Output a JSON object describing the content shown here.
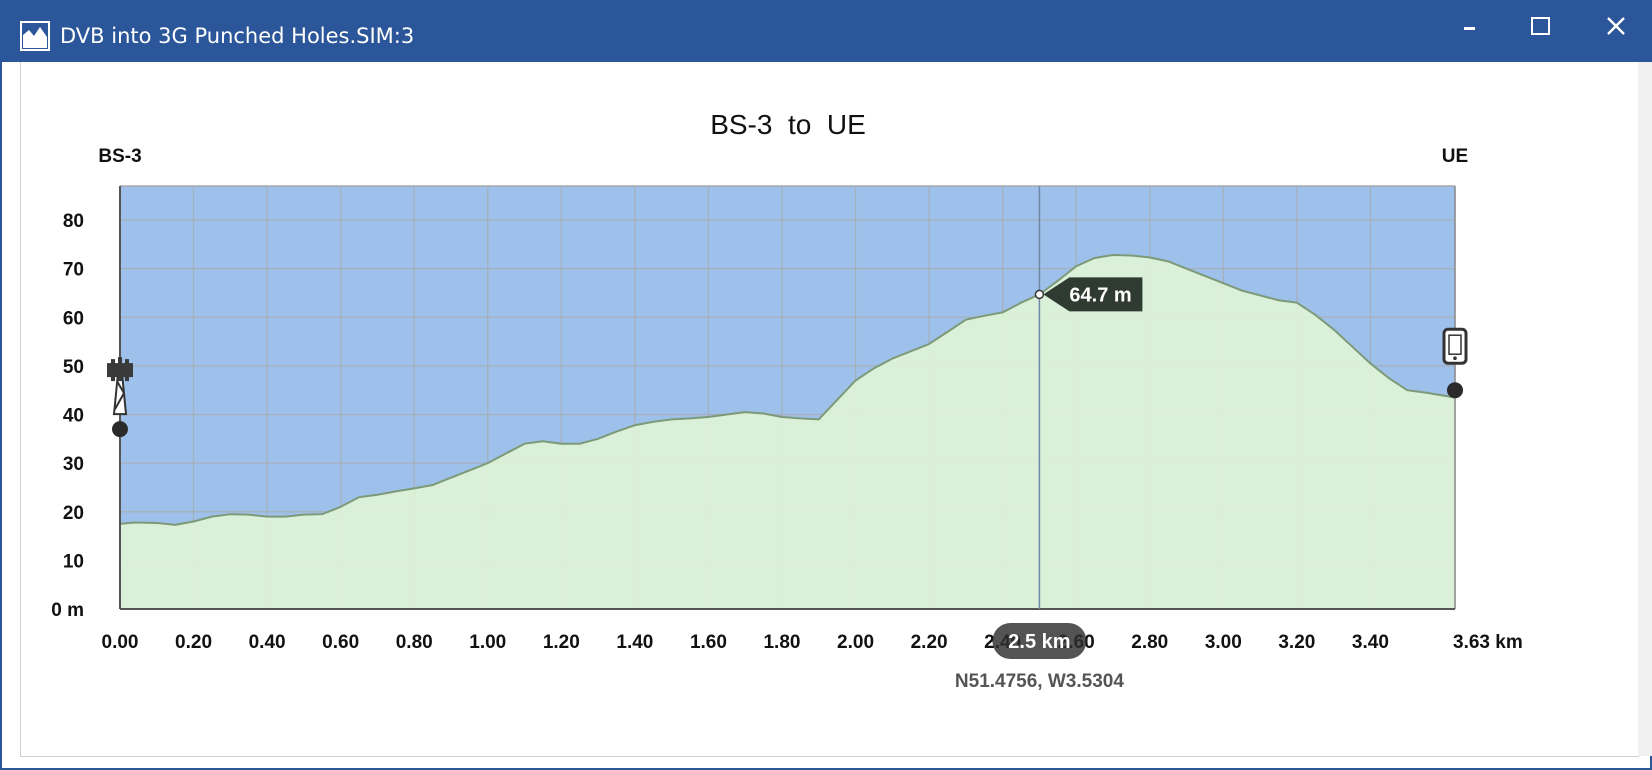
{
  "window": {
    "title": "DVB into 3G Punched Holes.SIM:3",
    "icon": "terrain-profile-icon",
    "controls": [
      "minimize-icon",
      "maximize-icon",
      "close-icon"
    ]
  },
  "chart_data": {
    "type": "area",
    "title": "BS-3  to  UE",
    "start_label": "BS-3",
    "end_label": "UE",
    "x_unit": "km",
    "y_unit": "m",
    "xlim": [
      0,
      3.63
    ],
    "ylim": [
      0,
      87
    ],
    "x_ticks": [
      "0.00",
      "0.20",
      "0.40",
      "0.60",
      "0.80",
      "1.00",
      "1.20",
      "1.40",
      "1.60",
      "1.80",
      "2.00",
      "2.20",
      "2.40",
      "2.60",
      "2.80",
      "3.00",
      "3.20",
      "3.40",
      "3.63 km"
    ],
    "x_tick_values": [
      0,
      0.2,
      0.4,
      0.6,
      0.8,
      1.0,
      1.2,
      1.4,
      1.6,
      1.8,
      2.0,
      2.2,
      2.4,
      2.6,
      2.8,
      3.0,
      3.2,
      3.4,
      3.63
    ],
    "y_ticks": [
      "0 m",
      "10",
      "20",
      "30",
      "40",
      "50",
      "60",
      "70",
      "80"
    ],
    "y_tick_values": [
      0,
      10,
      20,
      30,
      40,
      50,
      60,
      70,
      80
    ],
    "grid": true,
    "series": [
      {
        "color": "#dff3d6",
        "line_color": "#7d9a78",
        "x": [
          0,
          0.04,
          0.1,
          0.15,
          0.2,
          0.25,
          0.3,
          0.35,
          0.4,
          0.45,
          0.5,
          0.55,
          0.6,
          0.65,
          0.7,
          0.75,
          0.8,
          0.85,
          0.9,
          0.95,
          1.0,
          1.05,
          1.1,
          1.15,
          1.2,
          1.25,
          1.3,
          1.35,
          1.4,
          1.45,
          1.5,
          1.55,
          1.6,
          1.65,
          1.7,
          1.75,
          1.8,
          1.85,
          1.9,
          1.95,
          2.0,
          2.05,
          2.1,
          2.15,
          2.2,
          2.25,
          2.3,
          2.35,
          2.4,
          2.45,
          2.5,
          2.55,
          2.6,
          2.65,
          2.7,
          2.75,
          2.8,
          2.85,
          2.9,
          2.95,
          3.0,
          3.05,
          3.1,
          3.15,
          3.2,
          3.25,
          3.3,
          3.35,
          3.4,
          3.45,
          3.5,
          3.55,
          3.63
        ],
        "y": [
          17.5,
          17.8,
          17.7,
          17.3,
          18.0,
          19.0,
          19.5,
          19.4,
          19.0,
          19.0,
          19.4,
          19.5,
          21.0,
          23.0,
          23.5,
          24.2,
          24.8,
          25.5,
          27.0,
          28.5,
          30.0,
          32.0,
          34.0,
          34.5,
          34.0,
          34.0,
          35.0,
          36.5,
          37.8,
          38.5,
          39.0,
          39.2,
          39.5,
          40.0,
          40.5,
          40.2,
          39.5,
          39.2,
          39.0,
          43.0,
          47.0,
          49.5,
          51.5,
          53.0,
          54.5,
          57.0,
          59.5,
          60.3,
          61.0,
          63.0,
          64.7,
          67.5,
          70.5,
          72.2,
          72.8,
          72.7,
          72.3,
          71.5,
          70.0,
          68.5,
          67.0,
          65.5,
          64.5,
          63.5,
          63.0,
          60.5,
          57.5,
          54.0,
          50.5,
          47.5,
          45.0,
          44.5,
          43.5
        ]
      }
    ],
    "start_marker": {
      "icon": "cell-tower-icon",
      "x": 0,
      "height": 37
    },
    "end_marker": {
      "icon": "mobile-phone-icon",
      "x": 3.63,
      "height": 45
    },
    "cursor": {
      "x": 2.5,
      "y": 64.7,
      "distance_label": "2.5 km",
      "height_label": "64.7 m",
      "coordinates": "N51.4756, W3.5304"
    },
    "sky_color": "#9dc1ea"
  }
}
